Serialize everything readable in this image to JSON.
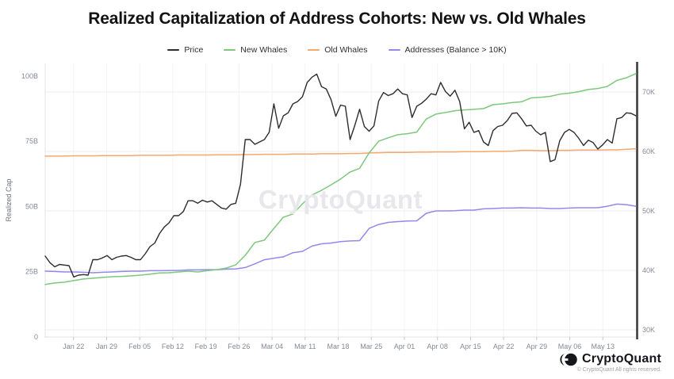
{
  "watermark": "CryptoQuant",
  "footer": {
    "brand": "CryptoQuant",
    "copyright": "© CryptoQuant All rights reserved."
  },
  "chart_data": {
    "type": "line",
    "title": "Realized Capitalization of Address Cohorts: New vs. Old Whales",
    "x_axis": {
      "day_range": [
        0,
        125
      ],
      "tick_days": [
        6,
        13,
        20,
        27,
        34,
        41,
        48,
        55,
        62,
        69,
        76,
        83,
        90,
        97,
        104,
        111,
        118
      ],
      "tick_labels": [
        "Jan 22",
        "Jan 29",
        "Feb 05",
        "Feb 12",
        "Feb 19",
        "Feb 26",
        "Mar 04",
        "Mar 11",
        "Mar 18",
        "Mar 25",
        "Apr 01",
        "Apr 08",
        "Apr 15",
        "Apr 22",
        "Apr 29",
        "May 06",
        "May 13"
      ]
    },
    "left_axis": {
      "label": "Realized Cap",
      "unit": "B USD",
      "range": [
        0,
        104.8
      ],
      "ticks": [
        {
          "value": 0,
          "label": "0"
        },
        {
          "value": 25,
          "label": "25B"
        },
        {
          "value": 50,
          "label": "50B"
        },
        {
          "value": 75,
          "label": "75B"
        },
        {
          "value": 100,
          "label": "100B"
        }
      ]
    },
    "right_axis": {
      "label": "",
      "unit": "K USD",
      "range": [
        28.8,
        74.8
      ],
      "ticks": [
        {
          "value": 30,
          "label": "30K"
        },
        {
          "value": 40,
          "label": "40K"
        },
        {
          "value": 50,
          "label": "50K"
        },
        {
          "value": 60,
          "label": "60K"
        },
        {
          "value": 70,
          "label": "70K"
        }
      ]
    },
    "grid": {
      "horizontal_at_right_ticks": true,
      "vertical_at_x_ticks": true
    },
    "legend_position": "top-center",
    "series": [
      {
        "name": "Price",
        "axis": "right",
        "color": "#2d2d2d",
        "width": 1.4,
        "values": [
          42.4,
          41.3,
          40.6,
          41.0,
          40.9,
          40.8,
          38.9,
          39.2,
          39.3,
          39.2,
          41.8,
          41.8,
          42.1,
          42.5,
          41.8,
          42.2,
          42.4,
          42.5,
          42.2,
          41.8,
          41.8,
          42.8,
          44.0,
          44.6,
          46.2,
          47.3,
          48.0,
          49.2,
          49.2,
          49.9,
          51.7,
          51.7,
          51.3,
          51.8,
          51.5,
          51.7,
          51.1,
          50.5,
          50.3,
          51.1,
          51.3,
          54.5,
          62.0,
          62.0,
          61.2,
          61.6,
          62.0,
          63.2,
          68.0,
          63.9,
          66.0,
          66.5,
          68.0,
          68.4,
          69.2,
          71.6,
          72.5,
          73.0,
          70.9,
          70.5,
          68.7,
          65.9,
          67.8,
          67.6,
          62.0,
          64.4,
          67.1,
          64.2,
          63.4,
          64.3,
          68.5,
          69.9,
          69.4,
          69.7,
          70.5,
          69.7,
          69.5,
          65.7,
          67.6,
          68.1,
          68.8,
          69.7,
          69.5,
          71.6,
          70.1,
          69.3,
          70.3,
          68.4,
          63.8,
          64.9,
          63.2,
          63.5,
          61.6,
          61.0,
          63.5,
          64.2,
          64.4,
          65.2,
          66.4,
          66.5,
          65.5,
          64.3,
          64.4,
          63.4,
          62.8,
          63.2,
          58.3,
          58.6,
          61.8,
          63.2,
          63.7,
          63.2,
          62.2,
          61.0,
          61.9,
          61.5,
          60.4,
          61.1,
          62.0,
          61.4,
          65.5,
          65.7,
          66.5,
          66.4,
          66.0
        ]
      },
      {
        "name": "New Whales",
        "axis": "left",
        "color": "#7dc87b",
        "width": 1.5,
        "values": [
          20.1,
          20.7,
          21.0,
          21.6,
          22.2,
          22.5,
          22.8,
          23.1,
          23.2,
          23.4,
          23.7,
          24.1,
          24.5,
          24.6,
          24.9,
          25.2,
          24.9,
          25.4,
          25.8,
          26.4,
          27.6,
          31.3,
          36.2,
          37.1,
          41.6,
          45.9,
          47.1,
          51.0,
          54.4,
          56.2,
          58.3,
          60.5,
          63.2,
          64.6,
          70.5,
          75.0,
          76.3,
          77.5,
          77.9,
          78.5,
          83.5,
          85.4,
          86.0,
          86.7,
          87.0,
          87.2,
          87.5,
          89.0,
          89.3,
          89.8,
          90.1,
          91.6,
          91.8,
          92.2,
          93.0,
          93.4,
          94.0,
          94.8,
          95.2,
          96.0,
          98.3,
          99.3,
          100.9
        ]
      },
      {
        "name": "Old Whales",
        "axis": "left",
        "color": "#f7a76c",
        "width": 1.5,
        "values": [
          69.3,
          69.3,
          69.3,
          69.4,
          69.4,
          69.4,
          69.5,
          69.5,
          69.5,
          69.5,
          69.6,
          69.6,
          69.6,
          69.6,
          69.7,
          69.7,
          69.7,
          69.7,
          69.8,
          69.8,
          69.8,
          69.9,
          69.9,
          70.0,
          70.0,
          70.0,
          70.1,
          70.1,
          70.1,
          70.2,
          70.2,
          70.2,
          70.3,
          70.3,
          70.5,
          70.6,
          70.7,
          70.7,
          70.7,
          70.8,
          70.8,
          70.9,
          70.9,
          70.9,
          71.0,
          71.0,
          71.0,
          71.1,
          71.1,
          71.2,
          71.5,
          71.5,
          71.4,
          71.4,
          71.5,
          71.5,
          71.6,
          71.6,
          71.6,
          71.7,
          71.7,
          71.9,
          72.1
        ]
      },
      {
        "name": "Addresses (Balance > 10K)",
        "axis": "left",
        "color": "#9289ec",
        "width": 1.5,
        "note": "plotted on an unlabeled scale; values are left-axis equivalents read from the pixels",
        "values": [
          25.2,
          25.1,
          24.9,
          24.9,
          24.8,
          24.6,
          24.8,
          24.9,
          25.1,
          25.2,
          25.2,
          25.4,
          25.4,
          25.5,
          25.5,
          25.7,
          25.7,
          25.8,
          25.8,
          26.0,
          26.1,
          26.6,
          28.0,
          29.6,
          30.2,
          30.7,
          32.3,
          32.8,
          34.8,
          35.7,
          36.0,
          36.5,
          36.8,
          36.9,
          41.6,
          43.1,
          43.9,
          44.2,
          44.4,
          44.5,
          47.4,
          48.3,
          48.3,
          48.4,
          48.6,
          48.6,
          49.1,
          49.2,
          49.4,
          49.4,
          49.5,
          49.4,
          49.4,
          49.2,
          49.2,
          49.4,
          49.5,
          49.5,
          49.5,
          50.1,
          50.9,
          50.7,
          50.1
        ]
      }
    ]
  }
}
